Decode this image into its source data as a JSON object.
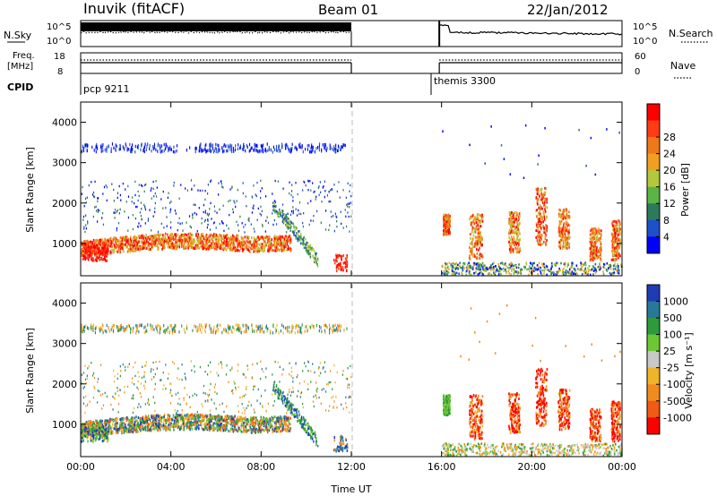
{
  "header": {
    "station": "Inuvik (fitACF)",
    "beam": "Beam 01",
    "date": "22/Jan/2012"
  },
  "top_panels": {
    "nsky_label": "N.Sky",
    "nsearch_label": "N.Search",
    "nsky_ticks": [
      "10^5",
      "10^0"
    ],
    "freq_label_1": "Freq.",
    "freq_label_2": "[MHz]",
    "freq_ticks": [
      "18",
      "8"
    ],
    "nave_label": "Nave",
    "nave_ticks": [
      "60",
      "0"
    ],
    "cpid_label": "CPID",
    "cpid_segments": [
      {
        "name": "pcp 9211",
        "start_hour": 0,
        "end_hour": 12
      },
      {
        "name": "themis 3300",
        "start_hour": 15.9,
        "end_hour": 24
      }
    ]
  },
  "chart_data": [
    {
      "type": "heatmap",
      "quantity": "power",
      "ylabel": "Slant Range [km]",
      "xlabel": "Time UT",
      "xlim": [
        0,
        24
      ],
      "ylim": [
        200,
        4500
      ],
      "y_ticks": [
        1000,
        2000,
        3000,
        4000
      ],
      "colorbar": {
        "label": "Power [dB]",
        "ticks": [
          "4",
          "8",
          "12",
          "16",
          "20",
          "24",
          "28"
        ],
        "colors": [
          "#0000ff",
          "#1e50c8",
          "#2d7a5a",
          "#5ab446",
          "#b4c83c",
          "#f0a020",
          "#f07818",
          "#ff3c14",
          "#ff0000"
        ]
      }
    },
    {
      "type": "heatmap",
      "quantity": "velocity",
      "ylabel": "Slant Range [km]",
      "xlabel": "Time UT",
      "xlim": [
        0,
        24
      ],
      "ylim": [
        200,
        4500
      ],
      "y_ticks": [
        1000,
        2000,
        3000,
        4000
      ],
      "colorbar": {
        "label": "Velocity [m s⁻¹]",
        "ticks": [
          "1000",
          "500",
          "100",
          "25",
          "-25",
          "-100",
          "-500",
          "-1000"
        ],
        "colors": [
          "#1e3cb4",
          "#28789a",
          "#2d9a3c",
          "#6cc832",
          "#c8c8c8",
          "#f0b428",
          "#f08c1e",
          "#f05a14",
          "#ff0000"
        ]
      }
    }
  ],
  "x_ticks": [
    "00:00",
    "04:00",
    "08:00",
    "12:00",
    "16:00",
    "20:00",
    "00:00"
  ],
  "x_axis_label": "Time UT"
}
